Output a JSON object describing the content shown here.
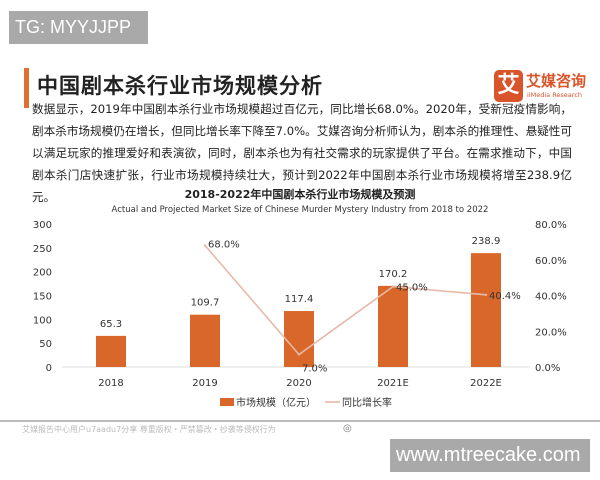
{
  "watermarks": {
    "top_left": "TG: MYYJJPP",
    "bottom_right": "www.mtreecake.com"
  },
  "header": {
    "title": "中国剧本杀行业市场规模分析",
    "logo_mark": "艾",
    "logo_cn": "艾媒咨询",
    "logo_en": "iiMedia Research"
  },
  "paragraph": "数据显示，2019年中国剧本杀行业市场规模超过百亿元，同比增长68.0%。2020年，受新冠疫情影响，剧本杀市场规模仍在增长，但同比增长率下降至7.0%。艾媒咨询分析师认为，剧本杀的推理性、悬疑性可以满足玩家的推理爱好和表演欲，同时，剧本杀也为有社交需求的玩家提供了平台。在需求推动下，中国剧本杀门店快速扩张，行业市场规模持续壮大，预计到2022年中国剧本杀行业市场规模将增至238.9亿元。",
  "footer": {
    "text": "艾媒报告中心用户u7aadu7分享 尊重版权・严禁篡改・抄袭等侵权行为"
  },
  "colors": {
    "bar": "#d9672a",
    "line": "#e8b8a8",
    "accent": "#e07030"
  },
  "chart_data": {
    "type": "bar+line",
    "title": "2018-2022年中国剧本杀行业市场规模及预测",
    "subtitle": "Actual and Projected Market Size  of Chinese Murder Mystery Industry from 2018 to 2022",
    "categories": [
      "2018",
      "2019",
      "2020",
      "2021E",
      "2022E"
    ],
    "series": [
      {
        "name": "市场规模（亿元）",
        "type": "bar",
        "axis": "left",
        "values": [
          65.3,
          109.7,
          117.4,
          170.2,
          238.9
        ],
        "labels": [
          "65.3",
          "109.7",
          "117.4",
          "170.2",
          "238.9"
        ]
      },
      {
        "name": "同比增长率",
        "type": "line",
        "axis": "right",
        "values": [
          null,
          68.0,
          7.0,
          45.0,
          40.4
        ],
        "labels": [
          "",
          "68.0%",
          "7.0%",
          "45.0%",
          "40.4%"
        ]
      }
    ],
    "left_axis": {
      "ylim": [
        0,
        300
      ],
      "ticks": [
        "0",
        "50",
        "100",
        "150",
        "200",
        "250",
        "300"
      ]
    },
    "right_axis": {
      "ylim": [
        0,
        80
      ],
      "ticks": [
        "0.0%",
        "20.0%",
        "40.0%",
        "60.0%",
        "80.0%"
      ]
    },
    "grid": false,
    "legend": "bottom"
  }
}
